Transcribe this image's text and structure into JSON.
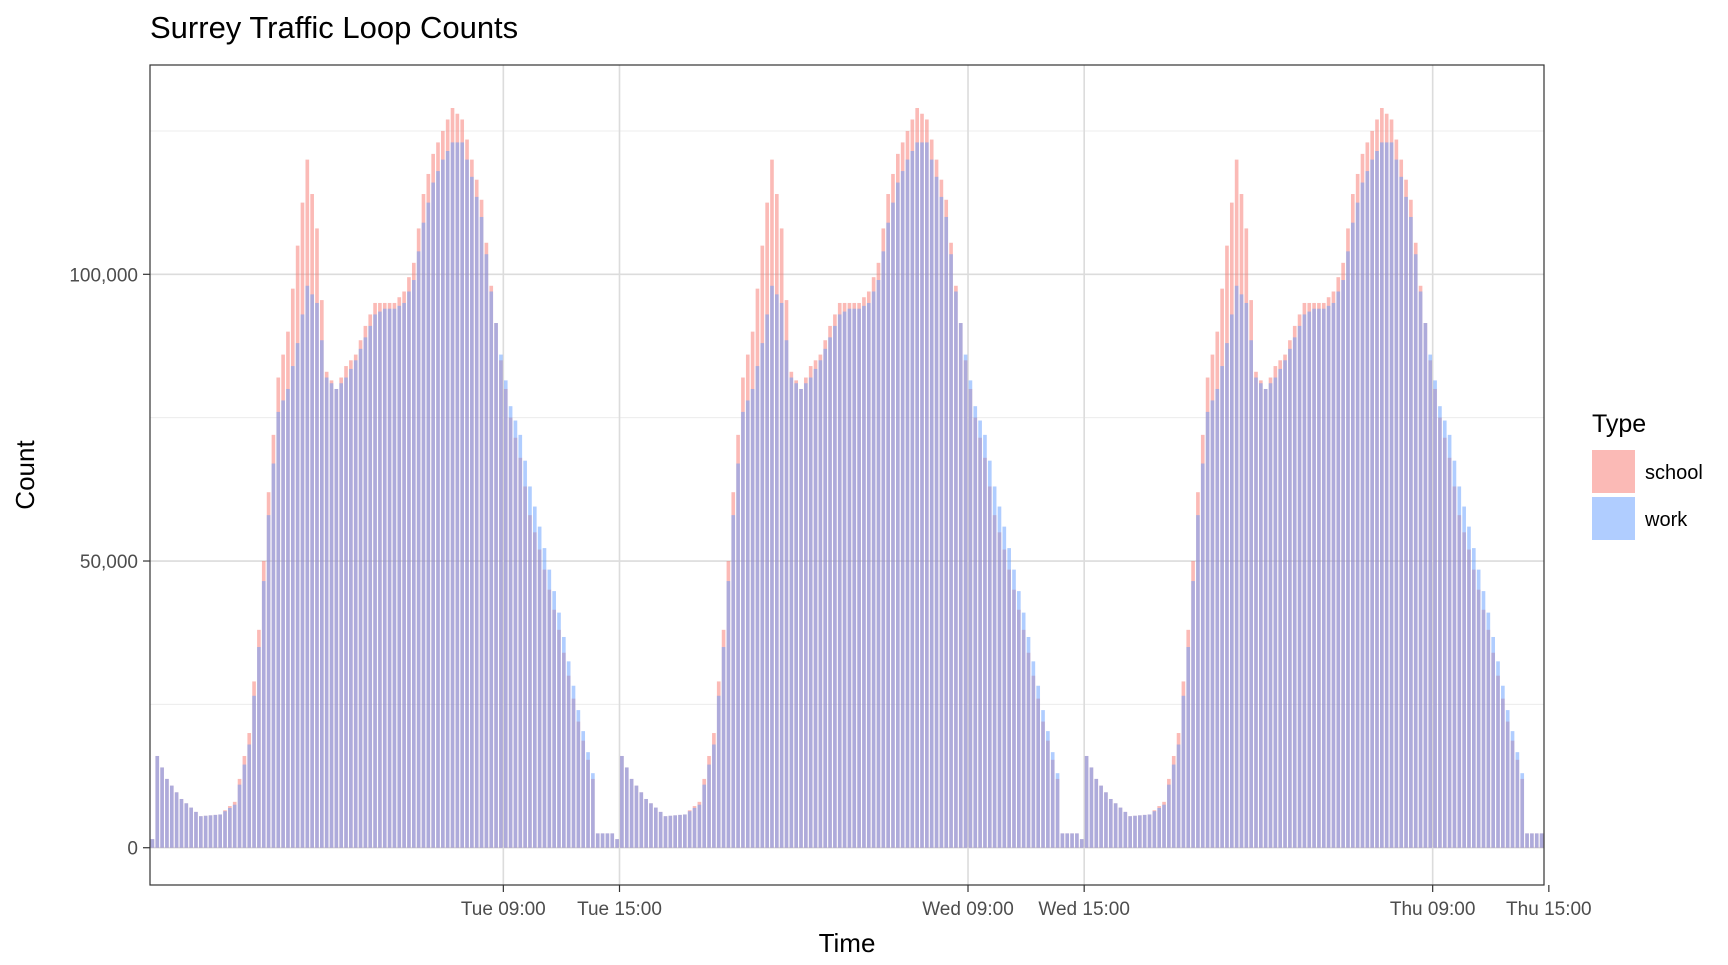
{
  "chart_data": {
    "type": "bar",
    "title": "Surrey Traffic Loop Counts",
    "xlabel": "Time",
    "ylabel": "Count",
    "ylim": [
      -6500,
      136500
    ],
    "y_ticks": [
      {
        "value": 0,
        "label": "0"
      },
      {
        "value": 50000,
        "label": "50,000"
      },
      {
        "value": 100000,
        "label": "100,000"
      }
    ],
    "x_range": [
      -9.25,
      62.75
    ],
    "x_unit": "hours after Tue 00:00",
    "x_ticks": [
      {
        "value": 9,
        "label": "Tue 09:00"
      },
      {
        "value": 15,
        "label": "Tue 15:00"
      },
      {
        "value": 33,
        "label": "Wed 09:00"
      },
      {
        "value": 39,
        "label": "Wed 15:00"
      },
      {
        "value": 57,
        "label": "Thu 09:00"
      },
      {
        "value": 63,
        "label": "Thu 15:00"
      }
    ],
    "grid": true,
    "legend": {
      "title": "Type",
      "position": "right"
    },
    "series": [
      {
        "name": "school",
        "color": "#F8766D",
        "anchors": [
          [
            0,
            1500
          ],
          [
            0.25,
            16000
          ],
          [
            0.75,
            12000
          ],
          [
            1.5,
            8500
          ],
          [
            2.5,
            5500
          ],
          [
            3.5,
            5800
          ],
          [
            4.25,
            8000
          ],
          [
            5,
            20000
          ],
          [
            5.5,
            38000
          ],
          [
            6,
            62000
          ],
          [
            6.5,
            82000
          ],
          [
            7,
            90000
          ],
          [
            7.5,
            105000
          ],
          [
            8,
            120000
          ],
          [
            8.5,
            108000
          ],
          [
            9,
            83000
          ],
          [
            9.5,
            80000
          ],
          [
            10,
            84000
          ],
          [
            10.5,
            86000
          ],
          [
            11,
            91000
          ],
          [
            11.5,
            95000
          ],
          [
            12,
            95000
          ],
          [
            12.5,
            95000
          ],
          [
            13,
            97000
          ],
          [
            13.5,
            102000
          ],
          [
            14,
            114000
          ],
          [
            14.5,
            121000
          ],
          [
            15,
            125000
          ],
          [
            15.5,
            129000
          ],
          [
            16,
            127000
          ],
          [
            16.5,
            120000
          ],
          [
            17,
            113000
          ],
          [
            17.5,
            98000
          ],
          [
            18,
            85000
          ],
          [
            18.5,
            75000
          ],
          [
            19,
            68000
          ],
          [
            19.5,
            58000
          ],
          [
            20,
            52000
          ],
          [
            21,
            38000
          ],
          [
            22,
            22000
          ],
          [
            22.75,
            12000
          ],
          [
            23,
            2500
          ]
        ]
      },
      {
        "name": "work",
        "color": "#619CFF",
        "anchors": [
          [
            0,
            1500
          ],
          [
            0.25,
            16000
          ],
          [
            0.75,
            12000
          ],
          [
            1.5,
            8500
          ],
          [
            2.5,
            5500
          ],
          [
            3.5,
            5800
          ],
          [
            4.25,
            7500
          ],
          [
            5,
            18000
          ],
          [
            5.5,
            35000
          ],
          [
            6,
            58000
          ],
          [
            6.5,
            76000
          ],
          [
            7,
            80000
          ],
          [
            7.5,
            88000
          ],
          [
            8,
            98000
          ],
          [
            8.5,
            95000
          ],
          [
            9,
            82000
          ],
          [
            9.5,
            80000
          ],
          [
            10,
            82000
          ],
          [
            10.5,
            85000
          ],
          [
            11,
            89000
          ],
          [
            11.5,
            93000
          ],
          [
            12,
            94000
          ],
          [
            12.5,
            94000
          ],
          [
            13,
            95000
          ],
          [
            13.5,
            99000
          ],
          [
            14,
            109000
          ],
          [
            14.5,
            116000
          ],
          [
            15,
            120000
          ],
          [
            15.5,
            123000
          ],
          [
            16,
            123000
          ],
          [
            16.5,
            117000
          ],
          [
            17,
            110000
          ],
          [
            17.5,
            97000
          ],
          [
            18,
            86000
          ],
          [
            18.5,
            77000
          ],
          [
            19,
            72000
          ],
          [
            19.5,
            63000
          ],
          [
            20,
            56000
          ],
          [
            21,
            41000
          ],
          [
            22,
            24000
          ],
          [
            22.75,
            13000
          ],
          [
            23,
            2500
          ]
        ]
      }
    ]
  }
}
